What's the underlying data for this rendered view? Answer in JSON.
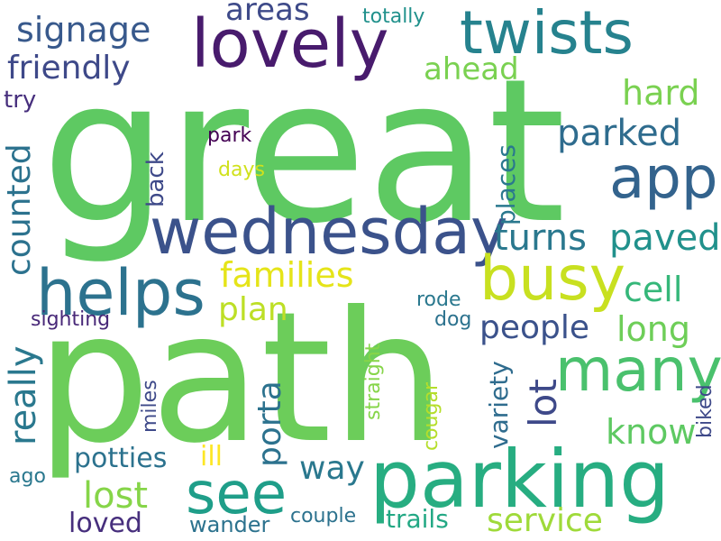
{
  "words": [
    {
      "text": "great",
      "color": "#5ec962"
    },
    {
      "text": "path",
      "color": "#6ccd5a"
    },
    {
      "text": "parking",
      "color": "#27ad81"
    },
    {
      "text": "lovely",
      "color": "#481b6d"
    },
    {
      "text": "twists",
      "color": "#26828e"
    },
    {
      "text": "wednesday",
      "color": "#3b528b"
    },
    {
      "text": "helps",
      "color": "#2c728e"
    },
    {
      "text": "busy",
      "color": "#c8e020"
    },
    {
      "text": "app",
      "color": "#33638d"
    },
    {
      "text": "many",
      "color": "#4ac16d"
    },
    {
      "text": "see",
      "color": "#1f9e89"
    },
    {
      "text": "signage",
      "color": "#38598c"
    },
    {
      "text": "friendly",
      "color": "#3e4989"
    },
    {
      "text": "areas",
      "color": "#3e4a89"
    },
    {
      "text": "totally",
      "color": "#21918c"
    },
    {
      "text": "ahead",
      "color": "#7ad151"
    },
    {
      "text": "hard",
      "color": "#7ad151"
    },
    {
      "text": "parked",
      "color": "#2f6c8e"
    },
    {
      "text": "try",
      "color": "#472f7d"
    },
    {
      "text": "park",
      "color": "#440154"
    },
    {
      "text": "days",
      "color": "#d0e11c"
    },
    {
      "text": "turns",
      "color": "#2a788e"
    },
    {
      "text": "paved",
      "color": "#21918c"
    },
    {
      "text": "families",
      "color": "#e5e419"
    },
    {
      "text": "cell",
      "color": "#35b779"
    },
    {
      "text": "plan",
      "color": "#bddf26"
    },
    {
      "text": "people",
      "color": "#3b528b"
    },
    {
      "text": "long",
      "color": "#6ece58"
    },
    {
      "text": "know",
      "color": "#5ec962"
    },
    {
      "text": "sighting",
      "color": "#482878"
    },
    {
      "text": "rode",
      "color": "#2a788e"
    },
    {
      "text": "dog",
      "color": "#2c728e"
    },
    {
      "text": "potties",
      "color": "#2c728e"
    },
    {
      "text": "ill",
      "color": "#fde725"
    },
    {
      "text": "way",
      "color": "#2a788e"
    },
    {
      "text": "lost",
      "color": "#86d549"
    },
    {
      "text": "ago",
      "color": "#2a788e"
    },
    {
      "text": "wander",
      "color": "#2c728e"
    },
    {
      "text": "couple",
      "color": "#2c728e"
    },
    {
      "text": "trails",
      "color": "#22a884"
    },
    {
      "text": "service",
      "color": "#9fda3a"
    },
    {
      "text": "loved",
      "color": "#472f7d"
    },
    {
      "text": "counted",
      "color": "#2c728e"
    },
    {
      "text": "back",
      "color": "#3e4989"
    },
    {
      "text": "places",
      "color": "#2a788e"
    },
    {
      "text": "really",
      "color": "#2a788e"
    },
    {
      "text": "porta",
      "color": "#2c728e"
    },
    {
      "text": "miles",
      "color": "#3e4989"
    },
    {
      "text": "straight",
      "color": "#86d549"
    },
    {
      "text": "cougar",
      "color": "#b5de2b"
    },
    {
      "text": "variety",
      "color": "#2f6c8e"
    },
    {
      "text": "lot",
      "color": "#3e4989"
    },
    {
      "text": "biked",
      "color": "#3e4989"
    }
  ]
}
